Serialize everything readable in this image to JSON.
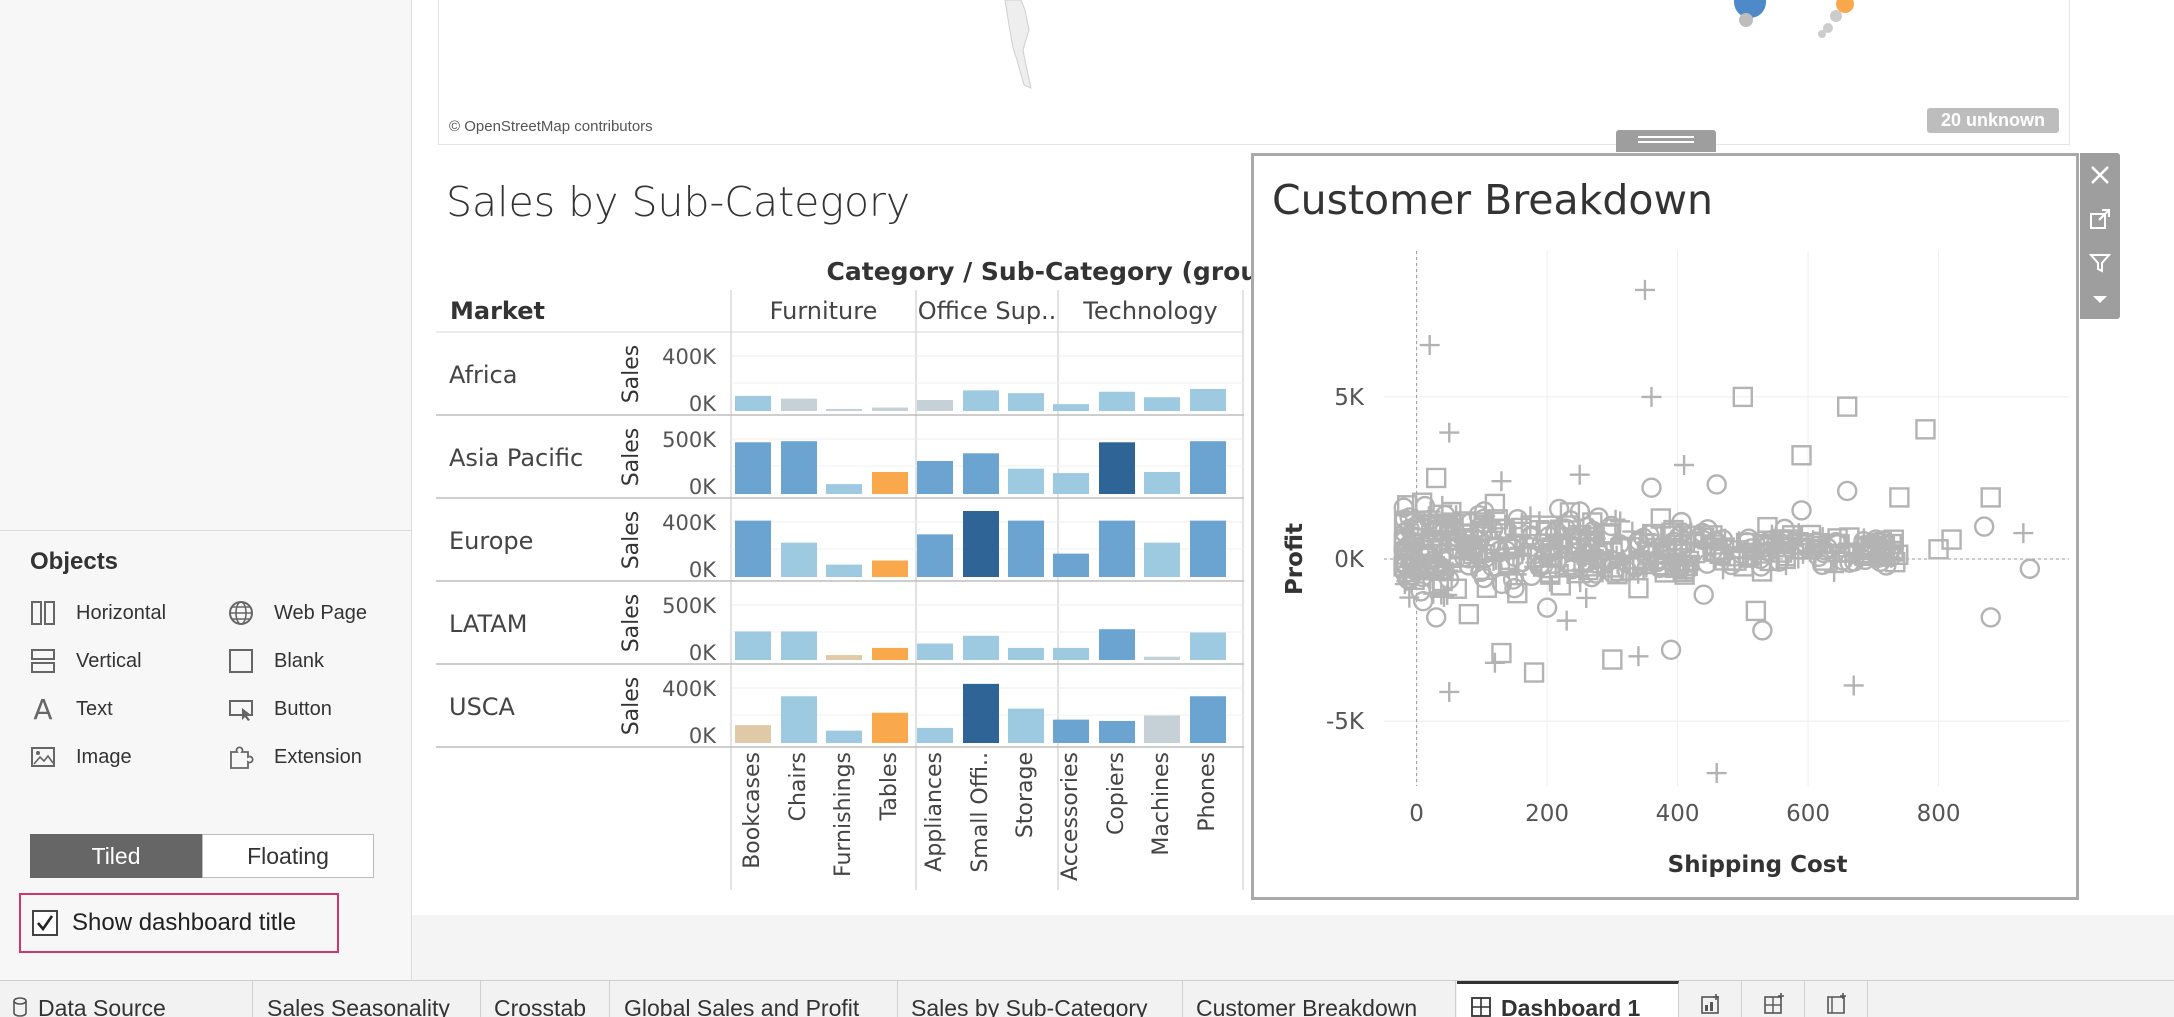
{
  "objects_panel": {
    "title": "Objects",
    "items": [
      {
        "label": "Horizontal",
        "icon": "horizontal-container-icon"
      },
      {
        "label": "Web Page",
        "icon": "globe-icon"
      },
      {
        "label": "Vertical",
        "icon": "vertical-container-icon"
      },
      {
        "label": "Blank",
        "icon": "blank-icon"
      },
      {
        "label": "Text",
        "icon": "text-icon"
      },
      {
        "label": "Button",
        "icon": "button-icon"
      },
      {
        "label": "Image",
        "icon": "image-icon"
      },
      {
        "label": "Extension",
        "icon": "extension-icon"
      }
    ],
    "mode": {
      "tiled": "Tiled",
      "floating": "Floating",
      "selected": "Tiled"
    },
    "show_title": {
      "label": "Show dashboard title",
      "checked": true
    }
  },
  "map": {
    "attribution": "© OpenStreetMap contributors",
    "unknown_badge": "20 unknown"
  },
  "colors": {
    "accent_highlight": "#d1356a",
    "bar_light": "#9ecae1",
    "bar_mid": "#6ba4d0",
    "bar_dark": "#2f6496",
    "bar_orange": "#f9a94b",
    "bar_tan": "#e0c9a6",
    "bar_grey": "#c5d1d6",
    "scatter_grey": "#b3b3b3"
  },
  "sales_chart": {
    "title": "Sales by Sub-Category",
    "header": "Category / Sub-Category (group)",
    "row_header": "Market",
    "measure_label": "Sales",
    "categories": [
      "Furniture",
      "Office Sup..",
      "Technology"
    ],
    "subcategories": [
      "Bookcases",
      "Chairs",
      "Furnishings",
      "Tables",
      "Appliances",
      "Small Offi..",
      "Storage",
      "Accessories",
      "Copiers",
      "Machines",
      "Phones"
    ],
    "category_spans": [
      4,
      3,
      4
    ]
  },
  "chart_data": [
    {
      "type": "bar",
      "title": "Sales by Sub-Category",
      "categories": [
        "Bookcases",
        "Chairs",
        "Furnishings",
        "Tables",
        "Appliances",
        "Small Offi..",
        "Storage",
        "Accessories",
        "Copiers",
        "Machines",
        "Phones"
      ],
      "series": [
        {
          "name": "Africa",
          "axis_top": "400K",
          "axis_max": 400000,
          "values": [
            110000,
            90000,
            15000,
            25000,
            80000,
            150000,
            130000,
            50000,
            140000,
            100000,
            160000
          ],
          "colors": [
            "light",
            "grey",
            "grey",
            "grey",
            "grey",
            "light",
            "light",
            "light",
            "light",
            "light",
            "light"
          ]
        },
        {
          "name": "Asia Pacific",
          "axis_top": "500K",
          "axis_max": 500000,
          "values": [
            470000,
            480000,
            90000,
            200000,
            300000,
            370000,
            230000,
            190000,
            470000,
            200000,
            480000
          ],
          "colors": [
            "mid",
            "mid",
            "light",
            "orange",
            "mid",
            "mid",
            "light",
            "light",
            "dark",
            "light",
            "mid"
          ]
        },
        {
          "name": "Europe",
          "axis_top": "400K",
          "axis_max": 400000,
          "values": [
            410000,
            250000,
            90000,
            120000,
            310000,
            480000,
            410000,
            170000,
            410000,
            250000,
            410000
          ],
          "colors": [
            "mid",
            "light",
            "light",
            "orange",
            "mid",
            "dark",
            "mid",
            "mid",
            "mid",
            "light",
            "mid"
          ]
        },
        {
          "name": "LATAM",
          "axis_top": "500K",
          "axis_max": 500000,
          "values": [
            260000,
            260000,
            45000,
            110000,
            150000,
            220000,
            110000,
            110000,
            280000,
            30000,
            250000
          ],
          "colors": [
            "light",
            "light",
            "tan",
            "orange",
            "light",
            "light",
            "light",
            "light",
            "mid",
            "grey",
            "light"
          ]
        },
        {
          "name": "USCA",
          "axis_top": "400K",
          "axis_max": 400000,
          "values": [
            130000,
            340000,
            90000,
            220000,
            110000,
            430000,
            250000,
            170000,
            160000,
            200000,
            340000
          ],
          "colors": [
            "tan",
            "light",
            "light",
            "orange",
            "light",
            "dark",
            "light",
            "mid",
            "mid",
            "grey",
            "mid"
          ]
        }
      ],
      "tick_labels_bottom": "0K"
    },
    {
      "type": "scatter",
      "title": "Customer Breakdown",
      "xlabel": "Shipping Cost",
      "ylabel": "Profit",
      "xlim": [
        -50,
        1000
      ],
      "ylim": [
        -7000,
        9500
      ],
      "x_ticks": [
        0,
        200,
        400,
        600,
        800
      ],
      "x_tick_labels": [
        "0",
        "200",
        "400",
        "600",
        "800"
      ],
      "y_ticks": [
        5000,
        0,
        -5000
      ],
      "y_tick_labels": [
        "5K",
        "0K",
        "-5K"
      ],
      "grid": true,
      "points": [
        {
          "x": 350,
          "y": 8300,
          "shape": "plus"
        },
        {
          "x": 20,
          "y": 6600,
          "shape": "plus"
        },
        {
          "x": 360,
          "y": 5000,
          "shape": "plus"
        },
        {
          "x": 500,
          "y": 5000,
          "shape": "square"
        },
        {
          "x": 660,
          "y": 4700,
          "shape": "square"
        },
        {
          "x": 780,
          "y": 4000,
          "shape": "square"
        },
        {
          "x": 50,
          "y": 3900,
          "shape": "plus"
        },
        {
          "x": 590,
          "y": 3200,
          "shape": "square"
        },
        {
          "x": 30,
          "y": 2500,
          "shape": "square"
        },
        {
          "x": 410,
          "y": 2900,
          "shape": "plus"
        },
        {
          "x": 250,
          "y": 2600,
          "shape": "plus"
        },
        {
          "x": 130,
          "y": 2400,
          "shape": "plus"
        },
        {
          "x": 460,
          "y": 2300,
          "shape": "circle"
        },
        {
          "x": 360,
          "y": 2200,
          "shape": "circle"
        },
        {
          "x": 660,
          "y": 2100,
          "shape": "circle"
        },
        {
          "x": 740,
          "y": 1900,
          "shape": "square"
        },
        {
          "x": 880,
          "y": 1900,
          "shape": "square"
        },
        {
          "x": 590,
          "y": 1500,
          "shape": "circle"
        },
        {
          "x": 120,
          "y": 1700,
          "shape": "square"
        },
        {
          "x": 870,
          "y": 1000,
          "shape": "circle"
        },
        {
          "x": 930,
          "y": 800,
          "shape": "plus"
        },
        {
          "x": 820,
          "y": 600,
          "shape": "square"
        },
        {
          "x": 700,
          "y": 500,
          "shape": "plus"
        },
        {
          "x": 940,
          "y": -300,
          "shape": "circle"
        },
        {
          "x": 880,
          "y": -1800,
          "shape": "circle"
        },
        {
          "x": 520,
          "y": -1600,
          "shape": "square"
        },
        {
          "x": 530,
          "y": -2200,
          "shape": "circle"
        },
        {
          "x": 390,
          "y": -2800,
          "shape": "circle"
        },
        {
          "x": 300,
          "y": -3100,
          "shape": "square"
        },
        {
          "x": 340,
          "y": -3000,
          "shape": "plus"
        },
        {
          "x": 180,
          "y": -3500,
          "shape": "square"
        },
        {
          "x": 120,
          "y": -3200,
          "shape": "plus"
        },
        {
          "x": 130,
          "y": -2900,
          "shape": "square"
        },
        {
          "x": 50,
          "y": -4100,
          "shape": "plus"
        },
        {
          "x": 670,
          "y": -3900,
          "shape": "plus"
        },
        {
          "x": 460,
          "y": -6600,
          "shape": "plus"
        },
        {
          "x": 10,
          "y": -1300,
          "shape": "circle"
        },
        {
          "x": 30,
          "y": -1800,
          "shape": "circle"
        },
        {
          "x": 80,
          "y": -1700,
          "shape": "square"
        },
        {
          "x": 200,
          "y": -1500,
          "shape": "circle"
        },
        {
          "x": 260,
          "y": -1200,
          "shape": "plus"
        },
        {
          "x": 230,
          "y": -1900,
          "shape": "plus"
        },
        {
          "x": 340,
          "y": -900,
          "shape": "square"
        },
        {
          "x": 440,
          "y": -1100,
          "shape": "circle"
        },
        {
          "x": 150,
          "y": -900,
          "shape": "circle"
        },
        {
          "x": 640,
          "y": -400,
          "shape": "plus"
        },
        {
          "x": 720,
          "y": -200,
          "shape": "circle"
        },
        {
          "x": 560,
          "y": 200,
          "shape": "square"
        },
        {
          "x": 800,
          "y": 300,
          "shape": "square"
        }
      ]
    }
  ],
  "tabs": [
    {
      "label": "Data Source",
      "active": false,
      "icon": "database-icon"
    },
    {
      "label": "Sales Seasonality",
      "active": false
    },
    {
      "label": "Crosstab",
      "active": false
    },
    {
      "label": "Global Sales and Profit",
      "active": false
    },
    {
      "label": "Sales by Sub-Category",
      "active": false
    },
    {
      "label": "Customer Breakdown",
      "active": false
    },
    {
      "label": "Dashboard 1",
      "active": true,
      "icon": "dashboard-icon"
    }
  ]
}
